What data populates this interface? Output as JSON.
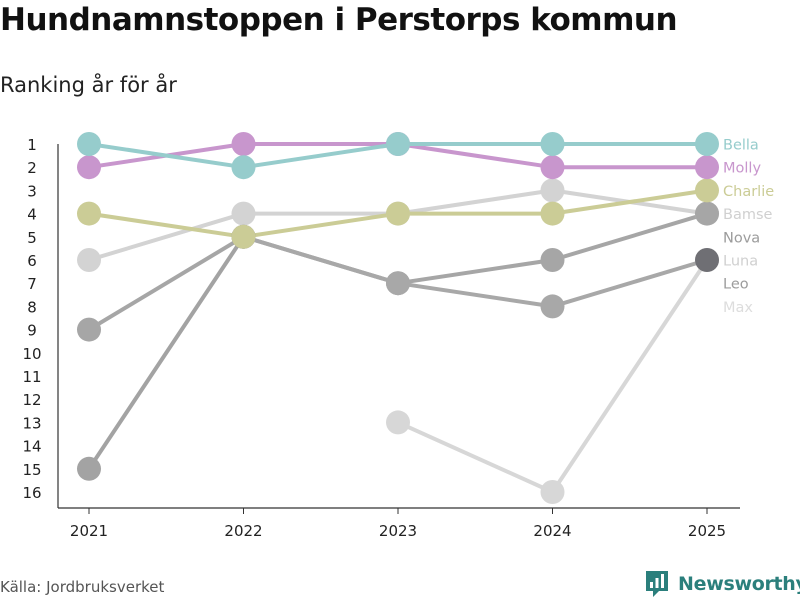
{
  "title": "Hundnamnstoppen i Perstorps kommun",
  "subtitle": "Ranking år för år",
  "source": "Källa: Jordbruksverket",
  "brand": {
    "name": "Newsworthy",
    "icon": "newsworthy-logo-icon"
  },
  "chart_data": {
    "type": "line",
    "title": "Hundnamnstoppen i Perstorps kommun",
    "subtitle": "Ranking år för år",
    "xlabel": "",
    "ylabel": "",
    "x": [
      "2021",
      "2022",
      "2023",
      "2024",
      "2025"
    ],
    "yticks": [
      1,
      2,
      3,
      4,
      5,
      6,
      7,
      8,
      9,
      10,
      11,
      12,
      13,
      14,
      15,
      16
    ],
    "ylim": [
      16,
      1
    ],
    "y_inverted": true,
    "grid": false,
    "series": [
      {
        "name": "Max",
        "color": "#d7d7d7",
        "values": [
          null,
          null,
          13,
          16,
          6
        ]
      },
      {
        "name": "Leo",
        "color": "#a3a3a3",
        "values": [
          15,
          5,
          null,
          null,
          null
        ]
      },
      {
        "name": "Luna",
        "color": "#d3d3d3",
        "values": [
          6,
          4,
          4,
          3,
          4
        ]
      },
      {
        "name": "Nova",
        "color": "#a6a6a6",
        "values": [
          9,
          5,
          7,
          6,
          4
        ]
      },
      {
        "name": "Bamse",
        "color": "#a8a8a8",
        "values": [
          null,
          5,
          7,
          8,
          6
        ]
      },
      {
        "name": "Charlie",
        "color": "#cbcc96",
        "values": [
          4,
          5,
          4,
          4,
          3
        ]
      },
      {
        "name": "Molly",
        "color": "#c896cd",
        "values": [
          2,
          1,
          1,
          2,
          2
        ]
      },
      {
        "name": "Bella",
        "color": "#96cccc",
        "values": [
          1,
          2,
          1,
          1,
          1
        ]
      }
    ],
    "legend": [
      {
        "name": "Bella",
        "color": "#96cccc"
      },
      {
        "name": "Molly",
        "color": "#c896cd"
      },
      {
        "name": "Charlie",
        "color": "#cbcc96"
      },
      {
        "name": "Bamse",
        "color": "#d0d0d0"
      },
      {
        "name": "Nova",
        "color": "#9c9c9c"
      },
      {
        "name": "Luna",
        "color": "#d0d0d0"
      },
      {
        "name": "Leo",
        "color": "#9c9c9c"
      },
      {
        "name": "Max",
        "color": "#dddddd"
      }
    ],
    "highlight_markers": [
      {
        "series": "Leo",
        "x": "2022",
        "color": "#6f6f74"
      },
      {
        "series": "Bamse",
        "x": "2025",
        "color": "#6f6f74"
      }
    ],
    "legend_position": "right"
  }
}
